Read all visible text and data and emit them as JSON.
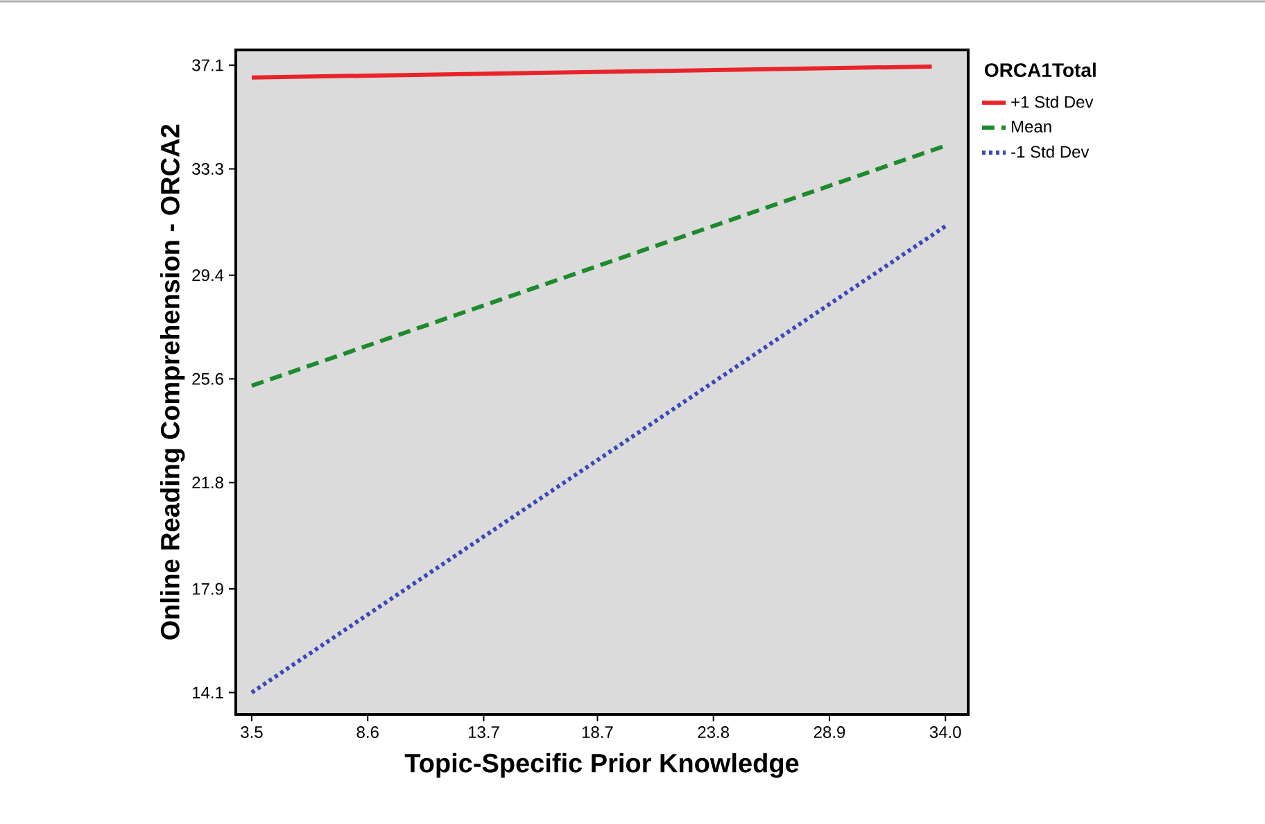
{
  "chart_data": {
    "type": "line",
    "xlabel": "Topic-Specific Prior Knowledge",
    "ylabel": "Online Reading Comprehension - ORCA2",
    "legend_title": "ORCA1Total",
    "legend": "top right",
    "xlim": [
      2.8,
      35.0
    ],
    "ylim": [
      13.3,
      37.66
    ],
    "xticks": [
      3.5,
      8.6,
      13.7,
      18.7,
      23.8,
      28.9,
      {
        "value": 34,
        "label": "34.0"
      }
    ],
    "yticks": [
      14.1,
      17.9,
      21.8,
      25.6,
      29.4,
      33.3,
      37.1
    ],
    "series": [
      {
        "name": "+1 Std Dev",
        "color": "#e8242a",
        "line_style": "solid",
        "x": [
          3.5,
          33.4
        ],
        "values": [
          36.65,
          37.05
        ]
      },
      {
        "name": "Mean",
        "color": "#1e8a2e",
        "line_style": "dashed",
        "x": [
          3.5,
          34.0
        ],
        "values": [
          25.35,
          34.15
        ]
      },
      {
        "name": "-1 Std Dev",
        "color": "#3a48b8",
        "line_style": "dotted",
        "x": [
          3.5,
          34.0
        ],
        "values": [
          14.1,
          31.2
        ]
      }
    ]
  }
}
